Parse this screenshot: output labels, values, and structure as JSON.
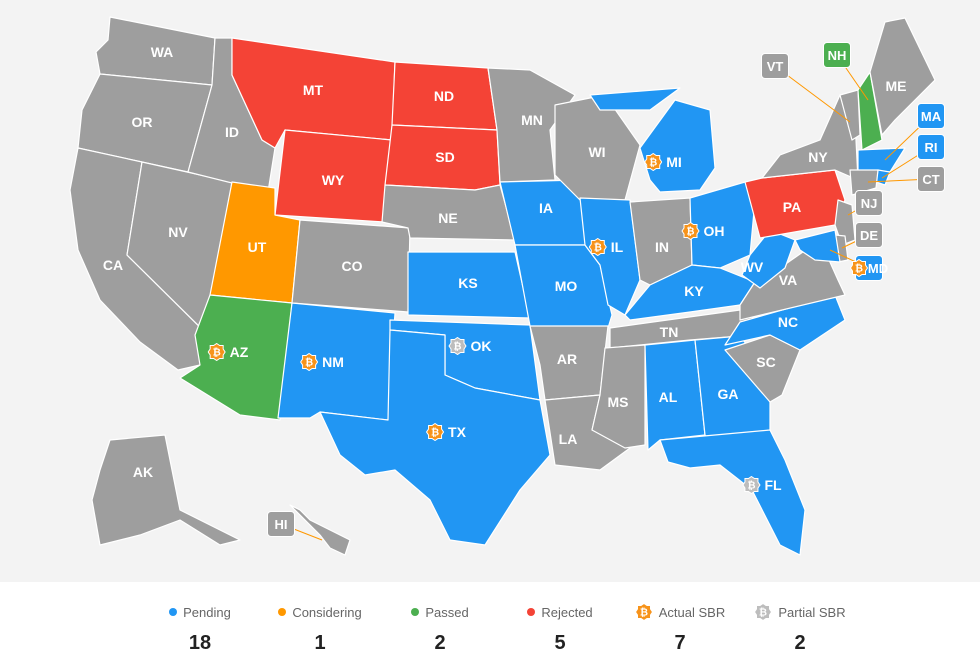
{
  "colors": {
    "pending": "#2196f3",
    "considering": "#ff9800",
    "passed": "#4caf50",
    "rejected": "#f44336",
    "none": "#9e9e9e",
    "actual_sbr": "#f7931a",
    "partial_sbr": "#bdbdbd",
    "leader": "#ff9800"
  },
  "states": [
    {
      "code": "WA",
      "status": "none",
      "sbr": ""
    },
    {
      "code": "OR",
      "status": "none",
      "sbr": ""
    },
    {
      "code": "CA",
      "status": "none",
      "sbr": ""
    },
    {
      "code": "NV",
      "status": "none",
      "sbr": ""
    },
    {
      "code": "ID",
      "status": "none",
      "sbr": ""
    },
    {
      "code": "MT",
      "status": "rejected",
      "sbr": ""
    },
    {
      "code": "WY",
      "status": "rejected",
      "sbr": ""
    },
    {
      "code": "UT",
      "status": "considering",
      "sbr": ""
    },
    {
      "code": "AZ",
      "status": "passed",
      "sbr": "actual"
    },
    {
      "code": "CO",
      "status": "none",
      "sbr": ""
    },
    {
      "code": "NM",
      "status": "pending",
      "sbr": "actual"
    },
    {
      "code": "ND",
      "status": "rejected",
      "sbr": ""
    },
    {
      "code": "SD",
      "status": "rejected",
      "sbr": ""
    },
    {
      "code": "NE",
      "status": "none",
      "sbr": ""
    },
    {
      "code": "KS",
      "status": "pending",
      "sbr": ""
    },
    {
      "code": "OK",
      "status": "pending",
      "sbr": "partial"
    },
    {
      "code": "TX",
      "status": "pending",
      "sbr": "actual"
    },
    {
      "code": "MN",
      "status": "none",
      "sbr": ""
    },
    {
      "code": "IA",
      "status": "pending",
      "sbr": ""
    },
    {
      "code": "MO",
      "status": "pending",
      "sbr": ""
    },
    {
      "code": "AR",
      "status": "none",
      "sbr": ""
    },
    {
      "code": "LA",
      "status": "none",
      "sbr": ""
    },
    {
      "code": "WI",
      "status": "none",
      "sbr": ""
    },
    {
      "code": "IL",
      "status": "pending",
      "sbr": "actual"
    },
    {
      "code": "MI",
      "status": "pending",
      "sbr": "actual"
    },
    {
      "code": "IN",
      "status": "none",
      "sbr": ""
    },
    {
      "code": "OH",
      "status": "pending",
      "sbr": "actual"
    },
    {
      "code": "KY",
      "status": "pending",
      "sbr": ""
    },
    {
      "code": "TN",
      "status": "none",
      "sbr": ""
    },
    {
      "code": "MS",
      "status": "none",
      "sbr": ""
    },
    {
      "code": "AL",
      "status": "pending",
      "sbr": ""
    },
    {
      "code": "GA",
      "status": "pending",
      "sbr": ""
    },
    {
      "code": "FL",
      "status": "pending",
      "sbr": "partial"
    },
    {
      "code": "SC",
      "status": "none",
      "sbr": ""
    },
    {
      "code": "NC",
      "status": "pending",
      "sbr": ""
    },
    {
      "code": "VA",
      "status": "none",
      "sbr": ""
    },
    {
      "code": "WV",
      "status": "pending",
      "sbr": ""
    },
    {
      "code": "PA",
      "status": "rejected",
      "sbr": ""
    },
    {
      "code": "NY",
      "status": "none",
      "sbr": ""
    },
    {
      "code": "VT",
      "status": "none",
      "sbr": ""
    },
    {
      "code": "NH",
      "status": "passed",
      "sbr": ""
    },
    {
      "code": "ME",
      "status": "none",
      "sbr": ""
    },
    {
      "code": "MA",
      "status": "pending",
      "sbr": ""
    },
    {
      "code": "RI",
      "status": "pending",
      "sbr": ""
    },
    {
      "code": "CT",
      "status": "none",
      "sbr": ""
    },
    {
      "code": "NJ",
      "status": "none",
      "sbr": ""
    },
    {
      "code": "DE",
      "status": "none",
      "sbr": ""
    },
    {
      "code": "MD",
      "status": "pending",
      "sbr": "actual"
    },
    {
      "code": "AK",
      "status": "none",
      "sbr": ""
    },
    {
      "code": "HI",
      "status": "none",
      "sbr": ""
    }
  ],
  "legend": [
    {
      "key": "pending",
      "label": "Pending",
      "count": "18",
      "marker": "dot"
    },
    {
      "key": "considering",
      "label": "Considering",
      "count": "1",
      "marker": "dot"
    },
    {
      "key": "passed",
      "label": "Passed",
      "count": "2",
      "marker": "dot"
    },
    {
      "key": "rejected",
      "label": "Rejected",
      "count": "5",
      "marker": "dot"
    },
    {
      "key": "actual_sbr",
      "label": "Actual SBR",
      "count": "7",
      "marker": "btc"
    },
    {
      "key": "partial_sbr",
      "label": "Partial SBR",
      "count": "2",
      "marker": "btc"
    }
  ]
}
